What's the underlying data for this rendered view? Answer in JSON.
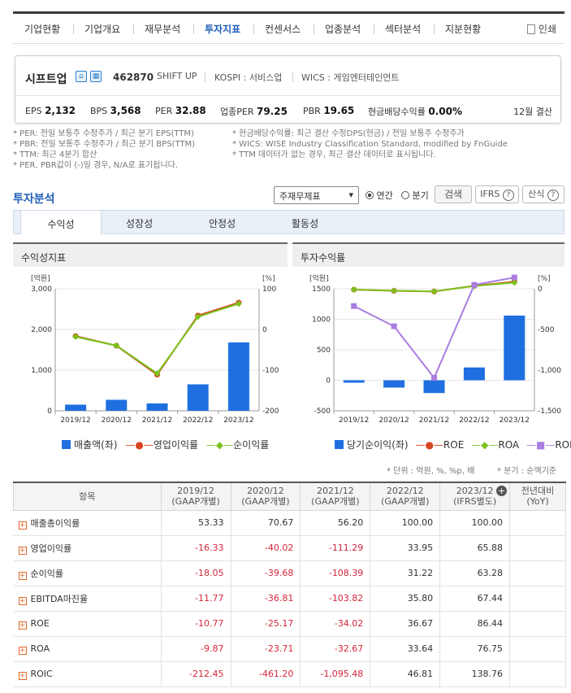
{
  "nav": {
    "tabs": [
      "기업현황",
      "기업개요",
      "재무분석",
      "투자지표",
      "컨센서스",
      "업종분석",
      "섹터분석",
      "지분현황"
    ],
    "active_index": 3,
    "print_label": "인쇄"
  },
  "company": {
    "name": "시프트업",
    "code": "462870",
    "english_name": "SHIFT UP",
    "market": "KOSPI : 서비스업",
    "wics": "WICS : 게임엔터테인먼트",
    "stats": {
      "eps_label": "EPS",
      "eps": "2,132",
      "bps_label": "BPS",
      "bps": "3,568",
      "per_label": "PER",
      "per": "32.88",
      "sector_per_label": "업종PER",
      "sector_per": "79.25",
      "pbr_label": "PBR",
      "pbr": "19.65",
      "div_label": "현금배당수익률",
      "div": "0.00%",
      "settlement": "12월 결산"
    }
  },
  "notes": {
    "left": [
      "* PER: 전일 보통주 수정주가 / 최근 분기 EPS(TTM)",
      "* PBR: 전일 보통주 수정주가 / 최근 분기 BPS(TTM)",
      "* TTM: 최근 4분기 합산",
      "* PER, PBR값이 (-)일 경우, N/A로 표기됩니다."
    ],
    "right": [
      "* 현금배당수익률: 최근 결산 수정DPS(현금) / 전일 보통주 수정주가",
      "* WICS: WISE Industry Classification Standard, modified by FnGuide",
      "* TTM 데이터가 없는 경우, 최근 결산 데이터로 표시됩니다."
    ]
  },
  "analysis": {
    "title": "투자분석",
    "select_value": "주재무제표",
    "radio_annual": "연간",
    "radio_quarter": "분기",
    "search_button": "검색",
    "ifrs_button": "IFRS",
    "formula_button": "산식",
    "subtabs": [
      "수익성",
      "성장성",
      "안정성",
      "활동성"
    ],
    "active_subtab": 0
  },
  "charts": {
    "left_title": "수익성지표",
    "right_title": "투자수익률",
    "left_unit_l": "[억원]",
    "left_unit_r": "[%]",
    "right_unit_l": "[억원]",
    "right_unit_r": "[%]"
  },
  "chart_data": [
    {
      "type": "bar",
      "title": "수익성지표",
      "categories": [
        "2019/12",
        "2020/12",
        "2021/12",
        "2022/12",
        "2023/12"
      ],
      "left_ticks": [
        "3,000",
        "2,000",
        "1,000",
        "0"
      ],
      "right_ticks": [
        "100",
        "0",
        "-100",
        "-200"
      ],
      "ylim_left": [
        0,
        3000
      ],
      "ylim_right": [
        -200,
        100
      ],
      "series": [
        {
          "name": "매출액(좌)",
          "type": "bar",
          "axis": "left",
          "color": "#1f6fe0",
          "values": [
            150,
            270,
            180,
            650,
            1680
          ]
        },
        {
          "name": "영업이익률",
          "type": "line",
          "axis": "right",
          "color": "#d8441f",
          "values": [
            -16.33,
            -40.02,
            -111.29,
            33.95,
            65.88
          ]
        },
        {
          "name": "순이익률",
          "type": "line",
          "axis": "right",
          "color": "#7cc21d",
          "values": [
            -18.05,
            -39.68,
            -108.39,
            31.22,
            63.28
          ]
        }
      ]
    },
    {
      "type": "bar",
      "title": "투자수익률",
      "categories": [
        "2019/12",
        "2020/12",
        "2021/12",
        "2022/12",
        "2023/12"
      ],
      "left_ticks": [
        "1500",
        "1000",
        "500",
        "0",
        "-500"
      ],
      "right_ticks": [
        "0",
        "-500",
        "-1,000",
        "-1,500"
      ],
      "ylim_left": [
        -500,
        1500
      ],
      "ylim_right": [
        -1500,
        0
      ],
      "series": [
        {
          "name": "당기순이익(좌)",
          "type": "bar",
          "axis": "left",
          "color": "#1f6fe0",
          "values": [
            -40,
            -120,
            -210,
            210,
            1060
          ]
        },
        {
          "name": "ROE",
          "type": "line",
          "axis": "right",
          "color": "#d8441f",
          "values": [
            -10.77,
            -25.17,
            -34.02,
            36.67,
            86.44
          ]
        },
        {
          "name": "ROA",
          "type": "line",
          "axis": "right",
          "color": "#7cc21d",
          "values": [
            -9.87,
            -23.71,
            -32.67,
            33.64,
            76.75
          ]
        },
        {
          "name": "ROIC",
          "type": "line",
          "axis": "right",
          "color": "#a97de0",
          "values": [
            -212.45,
            -461.2,
            -1095.48,
            46.81,
            138.76
          ]
        }
      ]
    }
  ],
  "table": {
    "unit_note": "* 단위 : 억원, %, %p, 배",
    "quarter_note": "* 분기 : 순액기준",
    "header_item": "항목",
    "columns": [
      {
        "year": "2019/12",
        "sub": "(GAAP개별)"
      },
      {
        "year": "2020/12",
        "sub": "(GAAP개별)"
      },
      {
        "year": "2021/12",
        "sub": "(GAAP개별)"
      },
      {
        "year": "2022/12",
        "sub": "(GAAP개별)"
      },
      {
        "year": "2023/12",
        "sub": "(IFRS별도)"
      },
      {
        "year": "전년대비",
        "sub": "(YoY)"
      }
    ],
    "rows": [
      {
        "label": "매출총이익률",
        "values": [
          "53.33",
          "70.67",
          "56.20",
          "100.00",
          "100.00",
          ""
        ]
      },
      {
        "label": "영업이익률",
        "values": [
          "-16.33",
          "-40.02",
          "-111.29",
          "33.95",
          "65.88",
          ""
        ]
      },
      {
        "label": "순이익률",
        "values": [
          "-18.05",
          "-39.68",
          "-108.39",
          "31.22",
          "63.28",
          ""
        ]
      },
      {
        "label": "EBITDA마진율",
        "values": [
          "-11.77",
          "-36.81",
          "-103.82",
          "35.80",
          "67.44",
          ""
        ]
      },
      {
        "label": "ROE",
        "values": [
          "-10.77",
          "-25.17",
          "-34.02",
          "36.67",
          "86.44",
          ""
        ]
      },
      {
        "label": "ROA",
        "values": [
          "-9.87",
          "-23.71",
          "-32.67",
          "33.64",
          "76.75",
          ""
        ]
      },
      {
        "label": "ROIC",
        "values": [
          "-212.45",
          "-461.20",
          "-1,095.48",
          "46.81",
          "138.76",
          ""
        ]
      }
    ]
  }
}
